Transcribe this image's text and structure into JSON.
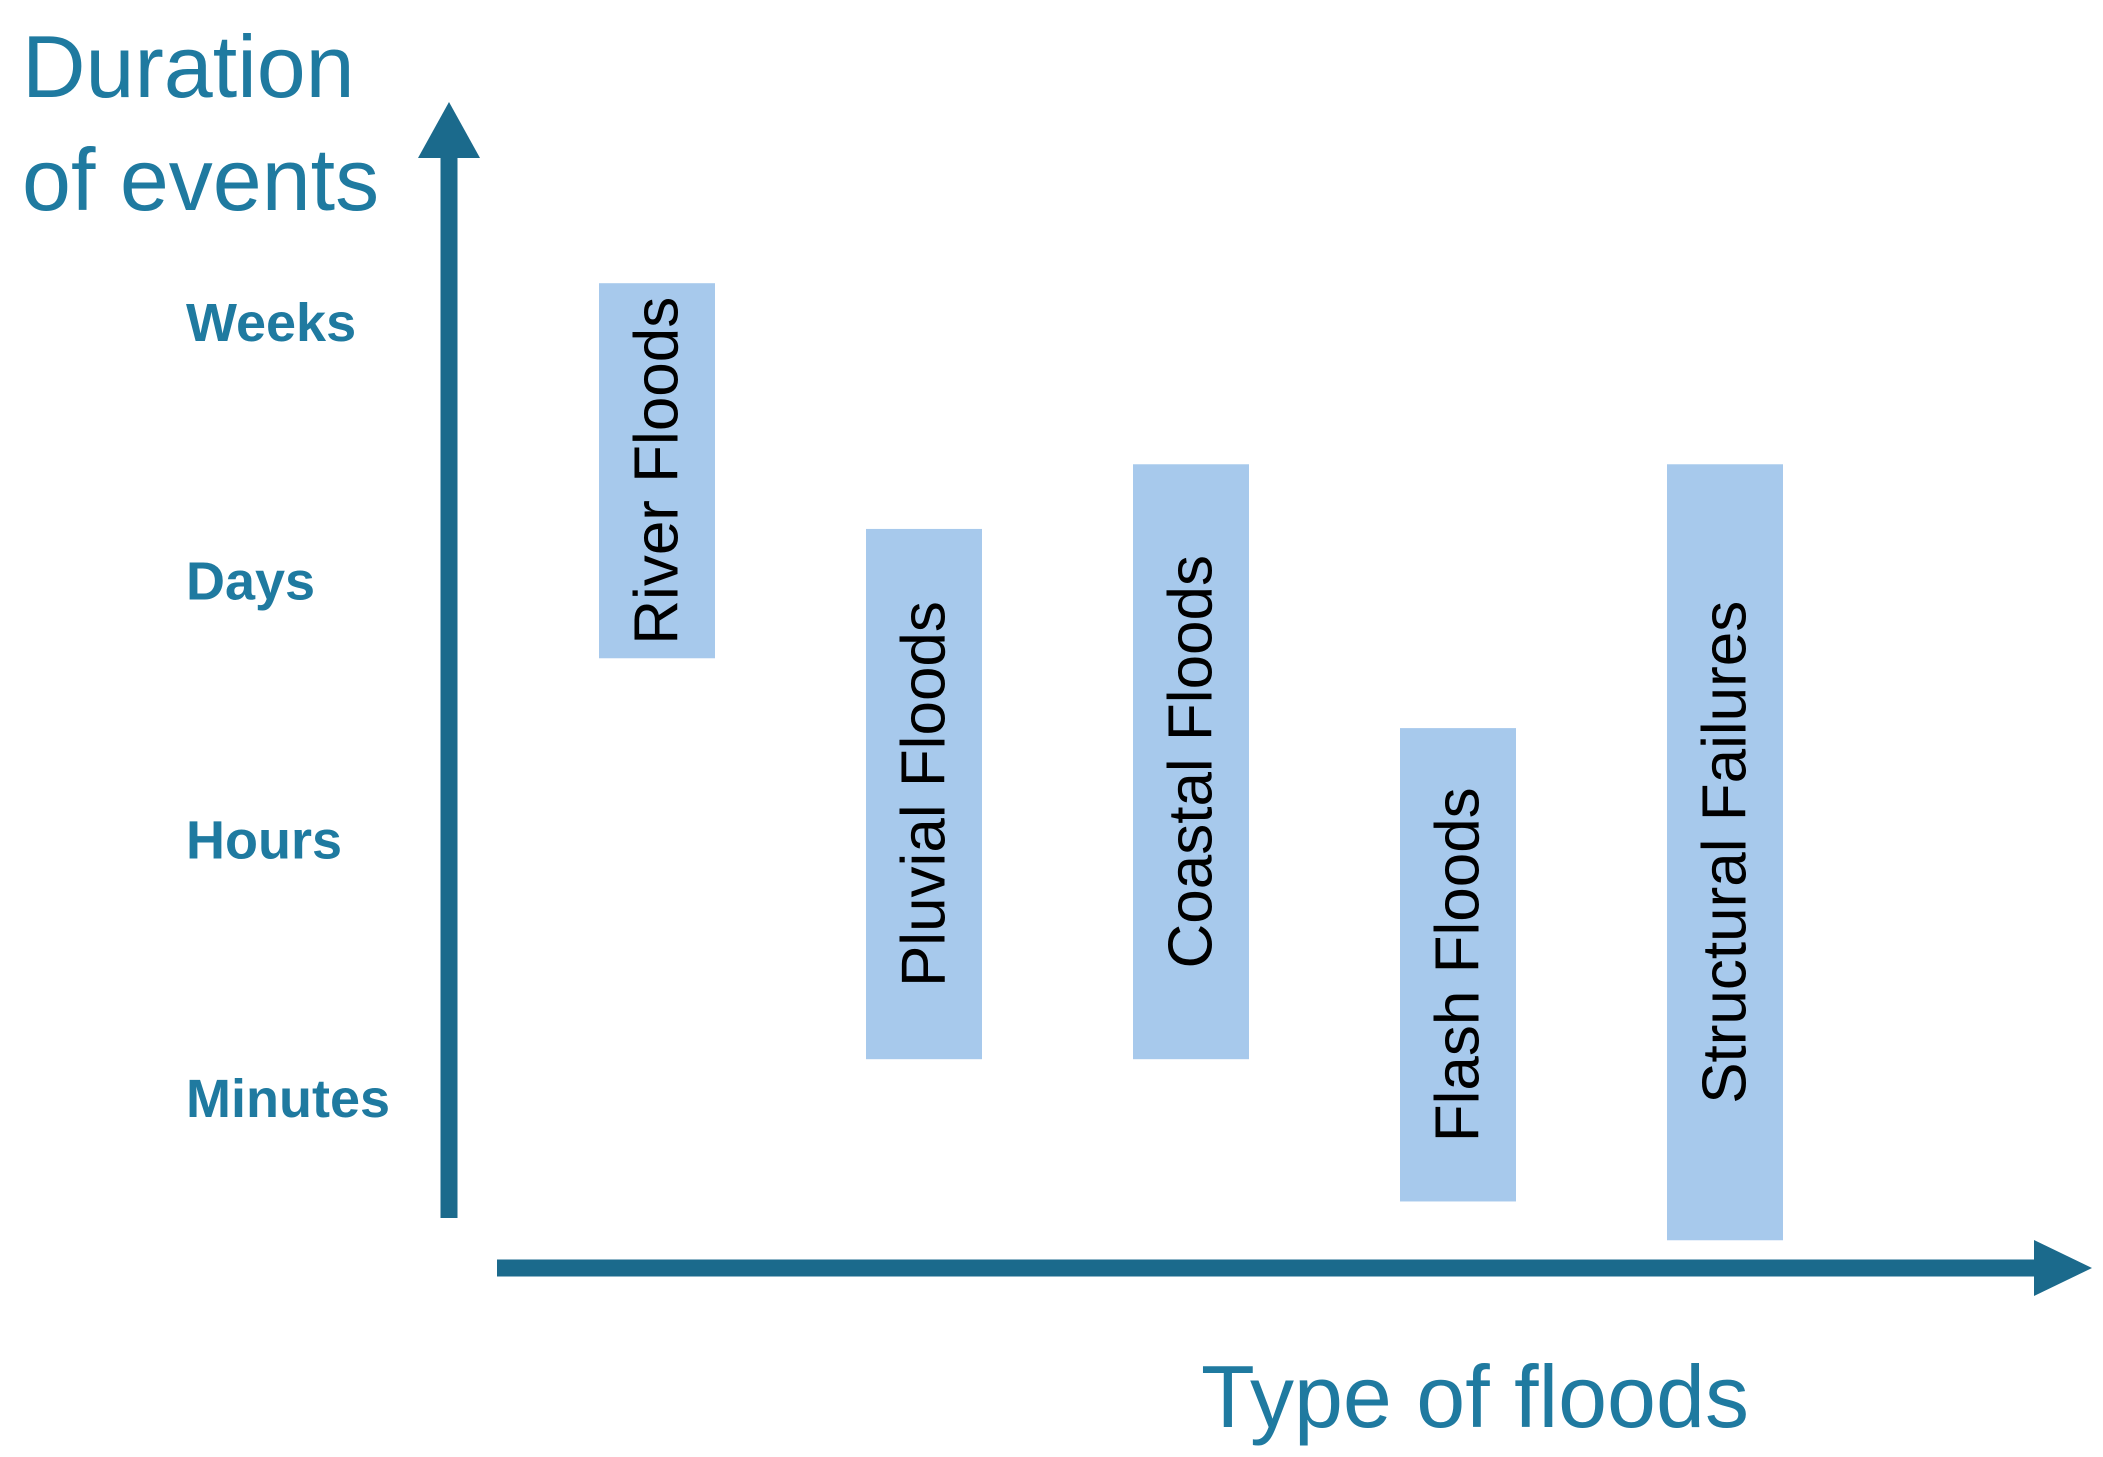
{
  "chart_data": {
    "type": "range-bar",
    "ylabel_line1": "Duration",
    "ylabel_line2": "of events",
    "xlabel": "Type of floods",
    "y_ticks": [
      "Minutes",
      "Hours",
      "Days",
      "Weeks"
    ],
    "categories": [
      "River Floods",
      "Pluvial Floods",
      "Coastal Floods",
      "Flash Floods",
      "Structural Failures"
    ],
    "ranges": [
      {
        "name": "River Floods",
        "low": 1.7,
        "high": 3.15
      },
      {
        "name": "Pluvial Floods",
        "low": 0.15,
        "high": 2.2
      },
      {
        "name": "Coastal Floods",
        "low": 0.15,
        "high": 2.45
      },
      {
        "name": "Flash Floods",
        "low": -0.4,
        "high": 1.43
      },
      {
        "name": "Structural Failures",
        "low": -0.55,
        "high": 2.45
      }
    ],
    "colors": {
      "axis": "#1b6a8c",
      "label": "#1f7aa0",
      "bar": "#a7c9ec",
      "bar_text": "#000000"
    }
  }
}
